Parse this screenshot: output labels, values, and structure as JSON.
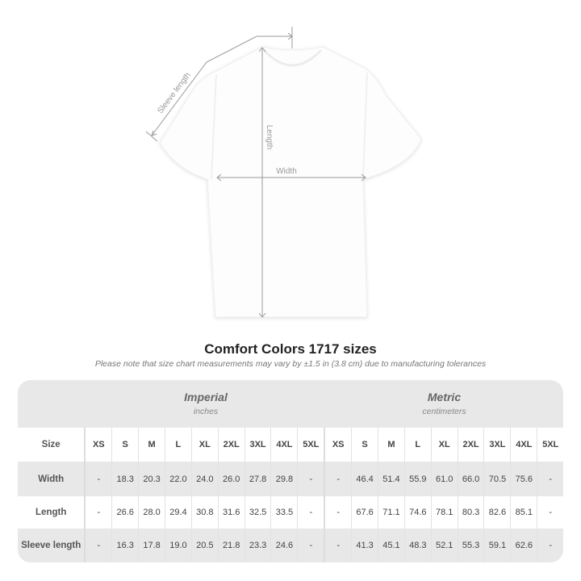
{
  "diagram": {
    "labels": {
      "sleeve": "Sleeve length",
      "length": "Length",
      "width": "Width"
    },
    "shirt_color": "#ffffff"
  },
  "title": "Comfort Colors 1717 sizes",
  "note": "Please note that size chart measurements may vary by ±1.5 in (3.8 cm) due to manufacturing tolerances",
  "table": {
    "imperial": {
      "title": "Imperial",
      "unit": "inches"
    },
    "metric": {
      "title": "Metric",
      "unit": "centimeters"
    },
    "size_label": "Size",
    "sizes": [
      "XS",
      "S",
      "M",
      "L",
      "XL",
      "2XL",
      "3XL",
      "4XL",
      "5XL"
    ],
    "rows": [
      {
        "label": "Width",
        "imperial": [
          "-",
          "18.3",
          "20.3",
          "22.0",
          "24.0",
          "26.0",
          "27.8",
          "29.8",
          "-"
        ],
        "metric": [
          "-",
          "46.4",
          "51.4",
          "55.9",
          "61.0",
          "66.0",
          "70.5",
          "75.6",
          "-"
        ]
      },
      {
        "label": "Length",
        "imperial": [
          "-",
          "26.6",
          "28.0",
          "29.4",
          "30.8",
          "31.6",
          "32.5",
          "33.5",
          "-"
        ],
        "metric": [
          "-",
          "67.6",
          "71.1",
          "74.6",
          "78.1",
          "80.3",
          "82.6",
          "85.1",
          "-"
        ]
      },
      {
        "label": "Sleeve length",
        "imperial": [
          "-",
          "16.3",
          "17.8",
          "19.0",
          "20.5",
          "21.8",
          "23.3",
          "24.6",
          "-"
        ],
        "metric": [
          "-",
          "41.3",
          "45.1",
          "48.3",
          "52.1",
          "55.3",
          "59.1",
          "62.6",
          "-"
        ]
      }
    ]
  }
}
